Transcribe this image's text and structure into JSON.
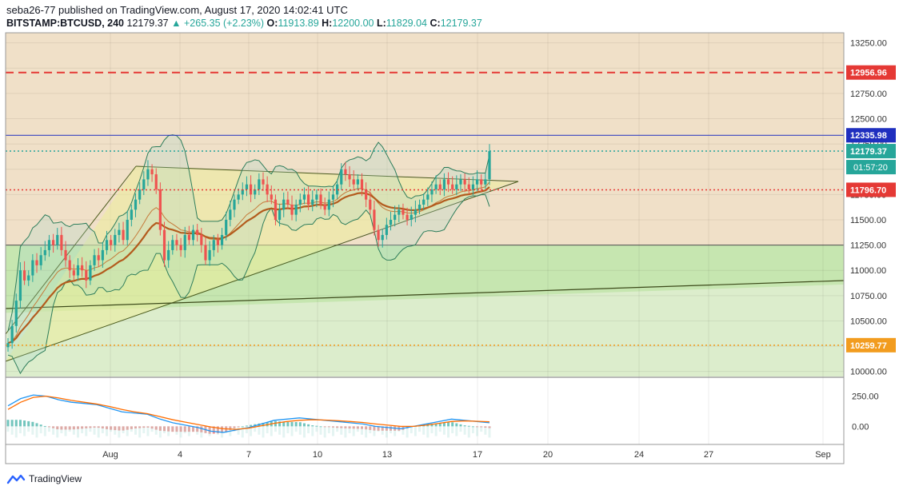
{
  "header": {
    "published": "seba26-77 published on TradingView.com, August 17, 2020 14:02:41 UTC",
    "symbol": "BITSTAMP:BTCUSD, 240",
    "last": "12179.37",
    "change": "+265.35 (+2.23%)",
    "o_label": "O:",
    "o": "11913.89",
    "h_label": "H:",
    "h": "12200.00",
    "l_label": "L:",
    "l": "11829.04",
    "c_label": "C:",
    "c": "12179.37"
  },
  "footer": {
    "brand": "TradingView"
  },
  "colors": {
    "bg_tan": "#f0e0c8",
    "zone_green": "#c6e6b0",
    "zone_green_light": "#e3efd5",
    "red": "#e53935",
    "blue": "#1f2fbf",
    "orange": "#f29c1f",
    "teal": "#26a69a",
    "ma_thick": "#b35b1d"
  },
  "chart_data": {
    "type": "candlestick",
    "ylim": [
      9950,
      13350
    ],
    "y_ticks": [
      "13250.00",
      "13000.00",
      "12750.00",
      "12500.00",
      "12250.00",
      "12000.00",
      "11750.00",
      "11500.00",
      "11250.00",
      "11000.00",
      "10750.00",
      "10500.00",
      "10250.00",
      "10000.00"
    ],
    "y_tick_values": [
      13250,
      13000,
      12750,
      12500,
      12250,
      12000,
      11750,
      11500,
      11250,
      11000,
      10750,
      10500,
      10250,
      10000
    ],
    "x_ticks": [
      "Aug",
      "4",
      "7",
      "10",
      "13",
      "17",
      "20",
      "24",
      "27",
      "Sep"
    ],
    "price_levels": [
      {
        "label": "12956.96",
        "value": 12956.96,
        "style": "dashed",
        "color": "#e53935"
      },
      {
        "label": "12335.98",
        "value": 12335.98,
        "style": "solid",
        "color": "#1f2fbf"
      },
      {
        "label": "12179.37",
        "value": 12179.37,
        "style": "dotted",
        "color": "#26a69a"
      },
      {
        "label": "11796.70",
        "value": 11796.7,
        "style": "dotted",
        "color": "#e53935"
      },
      {
        "label": "10259.77",
        "value": 10259.77,
        "style": "dotted",
        "color": "#f29c1f"
      }
    ],
    "countdown": "01:57:20",
    "zone": {
      "top": 11250,
      "bottom": 9950
    },
    "candles_close": [
      10280,
      10450,
      10700,
      11000,
      10900,
      10950,
      11100,
      11050,
      11150,
      11200,
      11300,
      11250,
      11350,
      11200,
      11100,
      11000,
      10950,
      11050,
      11000,
      10900,
      11050,
      11150,
      11100,
      11200,
      11300,
      11250,
      11350,
      11400,
      11300,
      11500,
      11600,
      11700,
      11800,
      11900,
      12000,
      11950,
      11800,
      11400,
      11100,
      11200,
      11300,
      11250,
      11200,
      11350,
      11300,
      11400,
      11350,
      11250,
      11100,
      11200,
      11300,
      11250,
      11350,
      11500,
      11600,
      11700,
      11750,
      11800,
      11850,
      11750,
      11800,
      11900,
      11850,
      11750,
      11700,
      11500,
      11600,
      11700,
      11650,
      11550,
      11650,
      11700,
      11750,
      11650,
      11700,
      11750,
      11650,
      11600,
      11700,
      11750,
      11850,
      12000,
      11950,
      11900,
      11850,
      11900,
      11800,
      11700,
      11600,
      11400,
      11300,
      11350,
      11450,
      11500,
      11550,
      11600,
      11550,
      11500,
      11550,
      11600,
      11650,
      11700,
      11750,
      11800,
      11850,
      11800,
      11900,
      11850,
      11800,
      11850,
      11900,
      11850,
      11800,
      11850,
      11900,
      11850,
      11900,
      12179
    ],
    "macd": {
      "macd_values": [
        170,
        230,
        260,
        250,
        220,
        200,
        190,
        180,
        150,
        120,
        110,
        100,
        60,
        30,
        10,
        -10,
        -40,
        -50,
        -30,
        -10,
        20,
        50,
        60,
        70,
        60,
        50,
        40,
        30,
        20,
        0,
        -10,
        -20,
        0,
        20,
        40,
        60,
        50,
        40,
        30
      ],
      "signal_values": [
        140,
        200,
        240,
        250,
        235,
        215,
        200,
        185,
        165,
        140,
        120,
        105,
        80,
        55,
        35,
        15,
        -5,
        -20,
        -25,
        -15,
        5,
        25,
        40,
        50,
        55,
        52,
        47,
        40,
        32,
        20,
        10,
        0,
        0,
        10,
        25,
        40,
        45,
        42,
        38
      ],
      "y_ticks": [
        "250.00",
        "0.00"
      ],
      "y_tick_values": [
        250,
        0
      ],
      "ylim": [
        -150,
        400
      ]
    }
  }
}
